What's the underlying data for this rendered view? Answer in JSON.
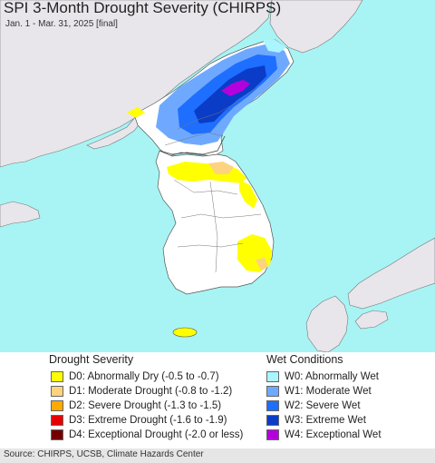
{
  "map": {
    "title": "SPI 3-Month Drought Severity (CHIRPS)",
    "subtitle": "Jan. 1 - Mar. 31, 2025 [final]",
    "colors": {
      "sea": "#a8f4f4",
      "land": "#ffffff",
      "foreign_land": "#e8e6eb",
      "border": "#666666"
    }
  },
  "legend": {
    "drought_title": "Drought Severity",
    "wet_title": "Wet Conditions",
    "drought_items": [
      {
        "label": "D0: Abnormally Dry (-0.5 to -0.7)",
        "color": "#ffff00"
      },
      {
        "label": "D1: Moderate Drought (-0.8 to -1.2)",
        "color": "#fcd37f"
      },
      {
        "label": "D2: Severe Drought (-1.3 to -1.5)",
        "color": "#ffaa00"
      },
      {
        "label": "D3: Extreme Drought (-1.6 to -1.9)",
        "color": "#e60000"
      },
      {
        "label": "D4: Exceptional Drought (-2.0 or less)",
        "color": "#730000"
      }
    ],
    "wet_items": [
      {
        "label": "W0: Abnormally Wet",
        "color": "#aaf5ff"
      },
      {
        "label": "W1: Moderate Wet",
        "color": "#6ea9ff"
      },
      {
        "label": "W2: Severe Wet",
        "color": "#1e6eff"
      },
      {
        "label": "W3: Extreme Wet",
        "color": "#0a3cc8"
      },
      {
        "label": "W4: Exceptional Wet",
        "color": "#b400dc"
      }
    ]
  },
  "footer": {
    "source": "Source: CHIRPS, UCSB, Climate Hazards Center"
  }
}
